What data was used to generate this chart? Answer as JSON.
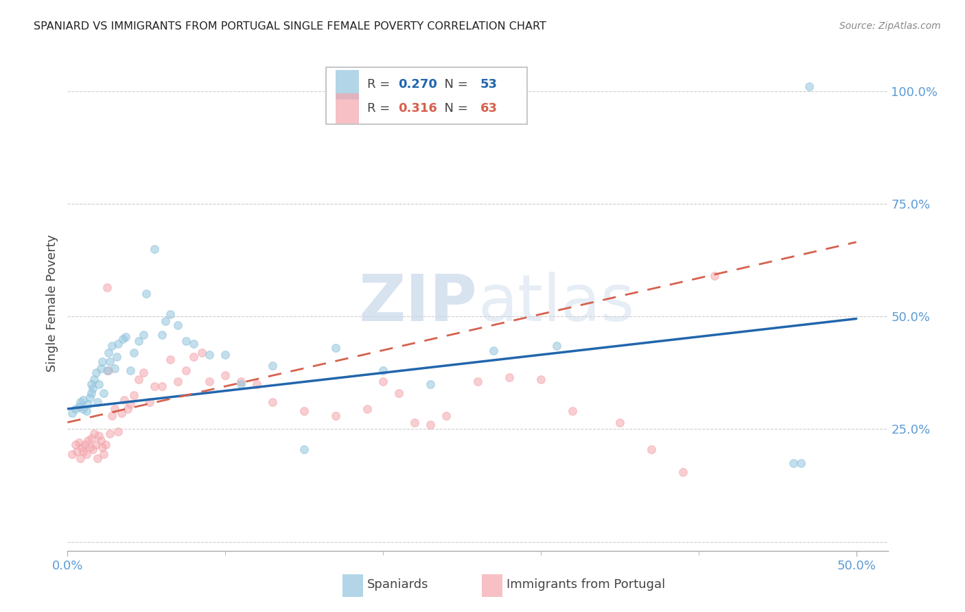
{
  "title": "SPANIARD VS IMMIGRANTS FROM PORTUGAL SINGLE FEMALE POVERTY CORRELATION CHART",
  "source": "Source: ZipAtlas.com",
  "ylabel": "Single Female Poverty",
  "xlim": [
    0.0,
    0.52
  ],
  "ylim": [
    -0.02,
    1.08
  ],
  "ytick_vals": [
    0.0,
    0.25,
    0.5,
    0.75,
    1.0
  ],
  "ytick_labels": [
    "",
    "25.0%",
    "50.0%",
    "75.0%",
    "100.0%"
  ],
  "xtick_vals": [
    0.0,
    0.5
  ],
  "xtick_labels": [
    "0.0%",
    "50.0%"
  ],
  "legend_blue_R": "0.270",
  "legend_blue_N": "53",
  "legend_pink_R": "0.316",
  "legend_pink_N": "63",
  "blue_color": "#92c5de",
  "pink_color": "#f4a6ad",
  "blue_fill": "#92c5de",
  "pink_fill": "#f4a6ad",
  "blue_line_color": "#2166ac",
  "pink_line_color": "#d6604d",
  "watermark_color": "#c8d8ea",
  "blue_line_x": [
    0.0,
    0.5
  ],
  "blue_line_y": [
    0.295,
    0.495
  ],
  "pink_line_x": [
    0.0,
    0.5
  ],
  "pink_line_y": [
    0.265,
    0.665
  ],
  "blue_scatter_x": [
    0.003,
    0.005,
    0.007,
    0.008,
    0.01,
    0.01,
    0.012,
    0.013,
    0.014,
    0.015,
    0.015,
    0.016,
    0.017,
    0.018,
    0.019,
    0.02,
    0.021,
    0.022,
    0.023,
    0.025,
    0.026,
    0.027,
    0.028,
    0.03,
    0.031,
    0.032,
    0.035,
    0.037,
    0.04,
    0.042,
    0.045,
    0.048,
    0.05,
    0.055,
    0.06,
    0.062,
    0.065,
    0.07,
    0.075,
    0.08,
    0.09,
    0.1,
    0.11,
    0.13,
    0.15,
    0.17,
    0.2,
    0.23,
    0.27,
    0.31,
    0.46,
    0.465,
    0.47
  ],
  "blue_scatter_y": [
    0.285,
    0.295,
    0.3,
    0.31,
    0.295,
    0.315,
    0.29,
    0.305,
    0.32,
    0.33,
    0.35,
    0.34,
    0.36,
    0.375,
    0.31,
    0.35,
    0.385,
    0.4,
    0.33,
    0.38,
    0.42,
    0.4,
    0.435,
    0.385,
    0.41,
    0.44,
    0.45,
    0.455,
    0.38,
    0.42,
    0.445,
    0.46,
    0.55,
    0.65,
    0.46,
    0.49,
    0.505,
    0.48,
    0.445,
    0.44,
    0.415,
    0.415,
    0.35,
    0.39,
    0.205,
    0.43,
    0.38,
    0.35,
    0.425,
    0.435,
    0.175,
    0.175,
    1.01
  ],
  "pink_scatter_x": [
    0.003,
    0.005,
    0.006,
    0.007,
    0.008,
    0.009,
    0.01,
    0.011,
    0.012,
    0.013,
    0.014,
    0.015,
    0.016,
    0.017,
    0.018,
    0.019,
    0.02,
    0.021,
    0.022,
    0.023,
    0.024,
    0.025,
    0.026,
    0.027,
    0.028,
    0.03,
    0.032,
    0.034,
    0.036,
    0.038,
    0.04,
    0.042,
    0.045,
    0.048,
    0.052,
    0.055,
    0.06,
    0.065,
    0.07,
    0.075,
    0.08,
    0.085,
    0.09,
    0.1,
    0.11,
    0.12,
    0.13,
    0.15,
    0.17,
    0.19,
    0.2,
    0.21,
    0.22,
    0.23,
    0.24,
    0.26,
    0.28,
    0.3,
    0.32,
    0.35,
    0.37,
    0.39,
    0.41
  ],
  "pink_scatter_y": [
    0.195,
    0.215,
    0.2,
    0.22,
    0.185,
    0.21,
    0.2,
    0.215,
    0.195,
    0.225,
    0.21,
    0.23,
    0.205,
    0.24,
    0.215,
    0.185,
    0.235,
    0.225,
    0.21,
    0.195,
    0.215,
    0.565,
    0.38,
    0.24,
    0.28,
    0.295,
    0.245,
    0.285,
    0.315,
    0.295,
    0.305,
    0.325,
    0.36,
    0.375,
    0.31,
    0.345,
    0.345,
    0.405,
    0.355,
    0.38,
    0.41,
    0.42,
    0.355,
    0.37,
    0.355,
    0.35,
    0.31,
    0.29,
    0.28,
    0.295,
    0.355,
    0.33,
    0.265,
    0.26,
    0.28,
    0.355,
    0.365,
    0.36,
    0.29,
    0.265,
    0.205,
    0.155,
    0.59
  ],
  "background_color": "#ffffff",
  "grid_color": "#cccccc",
  "title_color": "#222222",
  "ylabel_color": "#444444",
  "tick_color": "#5b9bd5",
  "scatter_size": 70,
  "scatter_alpha": 0.55,
  "scatter_lw": 1.0
}
